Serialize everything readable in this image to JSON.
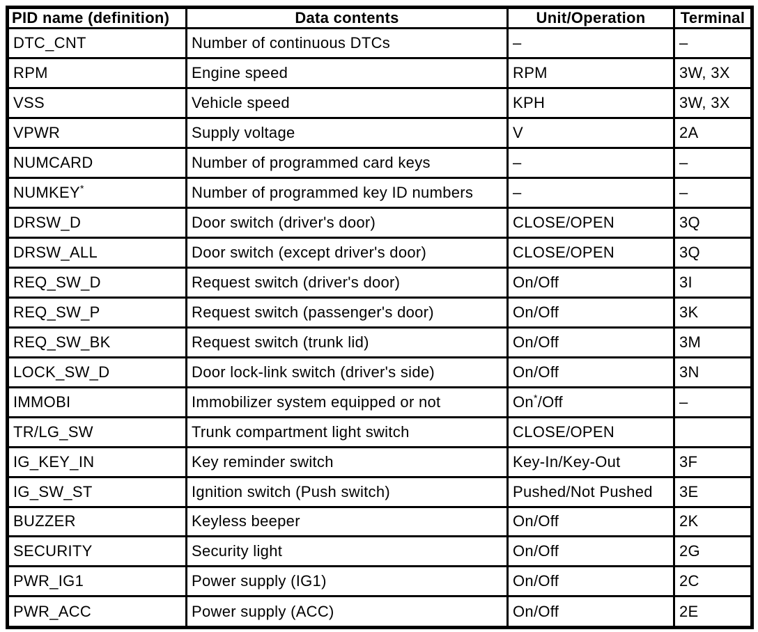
{
  "page": {
    "background_color": "#ffffff",
    "text_color": "#000000",
    "border_color": "#000000"
  },
  "table": {
    "headers": [
      {
        "label": "PID name (definition)"
      },
      {
        "label": "Data contents"
      },
      {
        "label": "Unit/Operation"
      },
      {
        "label": "Terminal"
      }
    ],
    "rows": [
      {
        "pid": "DTC_CNT",
        "data": "Number of continuous DTCs",
        "unit": "–",
        "terminal": "–"
      },
      {
        "pid": "RPM",
        "data": "Engine speed",
        "unit": "RPM",
        "terminal": "3W, 3X"
      },
      {
        "pid": "VSS",
        "data": "Vehicle speed",
        "unit": "KPH",
        "terminal": "3W, 3X"
      },
      {
        "pid": "VPWR",
        "data": "Supply voltage",
        "unit": "V",
        "terminal": "2A"
      },
      {
        "pid": "NUMCARD",
        "data": "Number of programmed card keys",
        "unit": "–",
        "terminal": "–"
      },
      {
        "pid": "NUMKEY",
        "pid_sup": "*",
        "data": "Number of programmed key ID numbers",
        "unit": "–",
        "terminal": "–"
      },
      {
        "pid": "DRSW_D",
        "data": "Door switch (driver's door)",
        "unit": "CLOSE/OPEN",
        "terminal": "3Q"
      },
      {
        "pid": "DRSW_ALL",
        "data": "Door switch (except driver's door)",
        "unit": "CLOSE/OPEN",
        "terminal": "3Q"
      },
      {
        "pid": "REQ_SW_D",
        "data": "Request switch (driver's door)",
        "unit": "On/Off",
        "terminal": "3I"
      },
      {
        "pid": "REQ_SW_P",
        "data": "Request switch (passenger's door)",
        "unit": "On/Off",
        "terminal": "3K"
      },
      {
        "pid": "REQ_SW_BK",
        "data": "Request switch (trunk lid)",
        "unit": "On/Off",
        "terminal": "3M"
      },
      {
        "pid": "LOCK_SW_D",
        "data": "Door lock-link switch (driver's side)",
        "unit": "On/Off",
        "terminal": "3N"
      },
      {
        "pid": "IMMOBI",
        "data": "Immobilizer system equipped or not",
        "unit_parts": [
          "On",
          "*",
          "/Off"
        ],
        "terminal": "–"
      },
      {
        "pid": "TR/LG_SW",
        "data": "Trunk compartment light switch",
        "unit": "CLOSE/OPEN",
        "terminal": ""
      },
      {
        "pid": "IG_KEY_IN",
        "data": "Key reminder switch",
        "unit": "Key-In/Key-Out",
        "terminal": "3F"
      },
      {
        "pid": "IG_SW_ST",
        "data": "Ignition switch (Push switch)",
        "unit": "Pushed/Not Pushed",
        "terminal": "3E"
      },
      {
        "pid": "BUZZER",
        "data": "Keyless beeper",
        "unit": "On/Off",
        "terminal": "2K"
      },
      {
        "pid": "SECURITY",
        "data": "Security light",
        "unit": "On/Off",
        "terminal": "2G"
      },
      {
        "pid": "PWR_IG1",
        "data": "Power supply (IG1)",
        "unit": "On/Off",
        "terminal": "2C"
      },
      {
        "pid": "PWR_ACC",
        "data": "Power supply (ACC)",
        "unit": "On/Off",
        "terminal": "2E"
      }
    ]
  }
}
